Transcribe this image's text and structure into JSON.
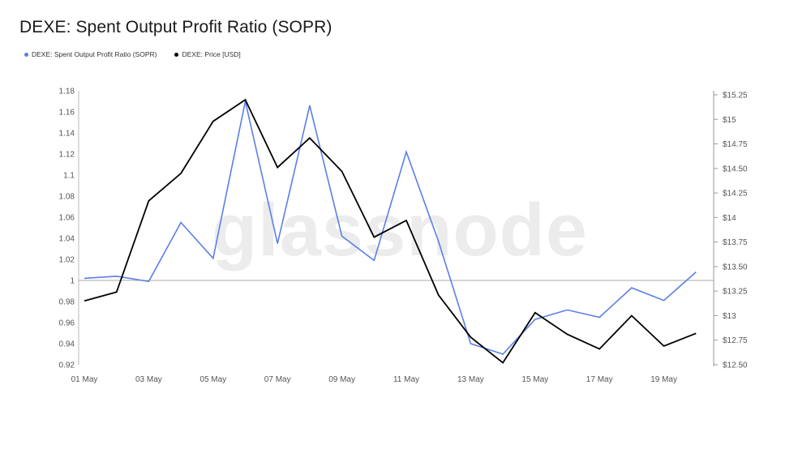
{
  "title": "DEXE: Spent Output Profit Ratio (SOPR)",
  "watermark": "glassnode",
  "legend": [
    {
      "label": "DEXE: Spent Output Profit Ratio (SOPR)",
      "color": "#5b7fe6"
    },
    {
      "label": "DEXE: Price [USD]",
      "color": "#000000"
    }
  ],
  "chart_data": {
    "type": "line",
    "x": [
      "01 May",
      "02 May",
      "03 May",
      "04 May",
      "05 May",
      "06 May",
      "07 May",
      "08 May",
      "09 May",
      "10 May",
      "11 May",
      "12 May",
      "13 May",
      "14 May",
      "15 May",
      "16 May",
      "17 May",
      "18 May",
      "19 May",
      "20 May"
    ],
    "x_ticks": [
      "01 May",
      "03 May",
      "05 May",
      "07 May",
      "09 May",
      "11 May",
      "13 May",
      "15 May",
      "17 May",
      "19 May"
    ],
    "left_axis": {
      "ylim": [
        0.92,
        1.18
      ],
      "ticks": [
        "1.18",
        "1.16",
        "1.14",
        "1.12",
        "1.1",
        "1.08",
        "1.06",
        "1.04",
        "1.02",
        "1",
        "0.98",
        "0.96",
        "0.94",
        "0.92"
      ],
      "tick_values": [
        1.18,
        1.16,
        1.14,
        1.12,
        1.1,
        1.08,
        1.06,
        1.04,
        1.02,
        1.0,
        0.98,
        0.96,
        0.94,
        0.92
      ]
    },
    "right_axis": {
      "ylim": [
        12.5,
        15.25
      ],
      "ticks": [
        "$15.25",
        "$15",
        "$14.75",
        "$14.50",
        "$14.25",
        "$14",
        "$13.75",
        "$13.50",
        "$13.25",
        "$13",
        "$12.75",
        "$12.50"
      ],
      "tick_values": [
        15.25,
        15.0,
        14.75,
        14.5,
        14.25,
        14.0,
        13.75,
        13.5,
        13.25,
        13.0,
        12.75,
        12.5
      ]
    },
    "reference_line": 1.0,
    "series": [
      {
        "name": "DEXE: Spent Output Profit Ratio (SOPR)",
        "axis": "left",
        "color": "#5b7fe6",
        "values": [
          1.002,
          1.004,
          0.999,
          1.055,
          1.021,
          1.17,
          1.035,
          1.166,
          1.042,
          1.019,
          1.122,
          1.037,
          0.94,
          0.93,
          0.963,
          0.972,
          0.965,
          0.993,
          0.981,
          1.008
        ]
      },
      {
        "name": "DEXE: Price [USD]",
        "axis": "right",
        "color": "#000000",
        "values": [
          13.15,
          13.24,
          14.17,
          14.45,
          14.98,
          15.2,
          14.51,
          14.81,
          14.47,
          13.8,
          13.97,
          13.21,
          12.78,
          12.52,
          13.03,
          12.81,
          12.66,
          13.0,
          12.69,
          12.82
        ]
      }
    ]
  }
}
